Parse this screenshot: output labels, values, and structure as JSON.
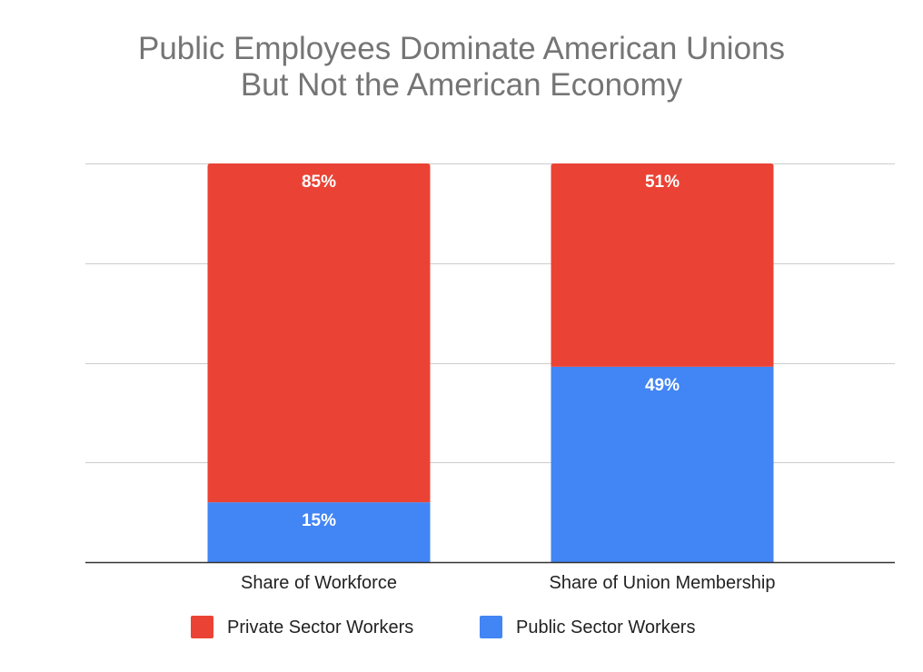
{
  "chart_data": {
    "type": "bar",
    "stacked": true,
    "title_lines": [
      "Public Employees Dominate American Unions",
      "But Not the American Economy"
    ],
    "categories": [
      "Share of Workforce",
      "Share of Union Membership"
    ],
    "series": [
      {
        "name": "Public Sector Workers",
        "color": "#4285f4",
        "values": [
          15,
          49
        ],
        "labels": [
          "15%",
          "49%"
        ]
      },
      {
        "name": "Private Sector Workers",
        "color": "#ea4335",
        "values": [
          85,
          51
        ],
        "labels": [
          "85%",
          "51%"
        ]
      }
    ],
    "legend_order": [
      "Private Sector Workers",
      "Public Sector Workers"
    ],
    "ylim": [
      0,
      100
    ],
    "y_gridlines": [
      0,
      25,
      50,
      75,
      100
    ],
    "y_tick_labels_shown": false,
    "grid": true,
    "legend_position": "bottom",
    "colors": {
      "gridline": "#cccccc",
      "axis": "#333333",
      "title": "#757575",
      "data_label": "#ffffff",
      "category_label": "#222222"
    }
  }
}
